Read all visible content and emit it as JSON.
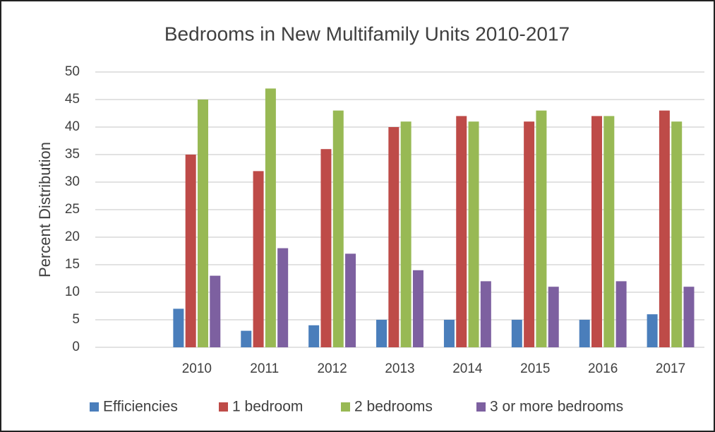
{
  "chart_data": {
    "type": "bar",
    "title": "Bedrooms in New Multifamily Units 2010-2017",
    "y_label": "Percent Distribution",
    "categories": [
      null,
      "2010",
      "2011",
      "2012",
      "2013",
      "2014",
      "2015",
      "2016",
      "2017"
    ],
    "series": [
      {
        "name": "Efficiencies",
        "color": "#4a7ebb",
        "values": [
          null,
          7,
          3,
          4,
          5,
          5,
          5,
          5,
          6
        ]
      },
      {
        "name": "1 bedroom",
        "color": "#be4b48",
        "values": [
          null,
          35,
          32,
          36,
          40,
          42,
          41,
          42,
          43
        ]
      },
      {
        "name": "2 bedrooms",
        "color": "#98b954",
        "values": [
          null,
          45,
          47,
          43,
          41,
          41,
          43,
          42,
          41
        ]
      },
      {
        "name": "3 or more bedrooms",
        "color": "#7d60a0",
        "values": [
          null,
          13,
          18,
          17,
          14,
          12,
          11,
          12,
          11
        ]
      }
    ],
    "ylim": [
      0,
      50
    ],
    "yticks": [
      0,
      5,
      10,
      15,
      20,
      25,
      30,
      35,
      40,
      45,
      50
    ],
    "grid": true,
    "legend": "bottom"
  }
}
